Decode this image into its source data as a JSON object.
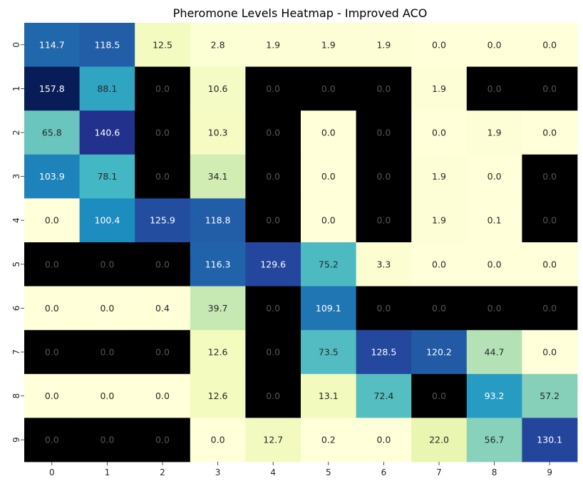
{
  "chart_data": {
    "type": "heatmap",
    "title": "Pheromone Levels Heatmap - Improved ACO",
    "x_labels": [
      "0",
      "1",
      "2",
      "3",
      "4",
      "5",
      "6",
      "7",
      "8",
      "9"
    ],
    "y_labels": [
      "0",
      "1",
      "2",
      "3",
      "4",
      "5",
      "6",
      "7",
      "8",
      "9"
    ],
    "values": [
      [
        114.7,
        118.5,
        12.5,
        2.8,
        1.9,
        1.9,
        1.9,
        0.0,
        0.0,
        0.0
      ],
      [
        157.8,
        88.1,
        0.0,
        10.6,
        0.0,
        0.0,
        0.0,
        1.9,
        0.0,
        0.0
      ],
      [
        65.8,
        140.6,
        0.0,
        10.3,
        0.0,
        0.0,
        0.0,
        0.0,
        1.9,
        0.0
      ],
      [
        103.9,
        78.1,
        0.0,
        34.1,
        0.0,
        0.0,
        0.0,
        1.9,
        0.0,
        0.0
      ],
      [
        0.0,
        100.4,
        125.9,
        118.8,
        0.0,
        0.0,
        0.0,
        1.9,
        0.1,
        0.0
      ],
      [
        0.0,
        0.0,
        0.0,
        116.3,
        129.6,
        75.2,
        3.3,
        0.0,
        0.0,
        0.0
      ],
      [
        0.0,
        0.0,
        0.4,
        39.7,
        0.0,
        109.1,
        0.0,
        0.0,
        0.0,
        0.0
      ],
      [
        0.0,
        0.0,
        0.0,
        12.6,
        0.0,
        73.5,
        128.5,
        120.2,
        44.7,
        0.0
      ],
      [
        0.0,
        0.0,
        0.0,
        12.6,
        0.0,
        13.1,
        72.4,
        0.0,
        93.2,
        57.2
      ],
      [
        0.0,
        0.0,
        0.0,
        0.0,
        12.7,
        0.2,
        0.0,
        22.0,
        56.7,
        130.1
      ]
    ],
    "obstacles": [
      [
        0,
        0,
        0,
        0,
        0,
        0,
        0,
        0,
        0,
        0
      ],
      [
        0,
        0,
        1,
        0,
        1,
        1,
        1,
        0,
        1,
        1
      ],
      [
        0,
        0,
        1,
        0,
        1,
        0,
        1,
        0,
        0,
        0
      ],
      [
        0,
        0,
        1,
        0,
        1,
        0,
        1,
        0,
        0,
        1
      ],
      [
        0,
        0,
        0,
        0,
        1,
        0,
        1,
        0,
        0,
        1
      ],
      [
        1,
        1,
        1,
        0,
        0,
        0,
        0,
        0,
        0,
        0
      ],
      [
        0,
        0,
        0,
        0,
        1,
        0,
        1,
        1,
        1,
        1
      ],
      [
        1,
        1,
        1,
        0,
        1,
        0,
        0,
        0,
        0,
        0
      ],
      [
        0,
        0,
        0,
        0,
        1,
        0,
        0,
        1,
        0,
        0
      ],
      [
        1,
        1,
        1,
        0,
        0,
        0,
        0,
        0,
        0,
        0
      ]
    ],
    "value_range": [
      0,
      157.8
    ],
    "colormap": "YlGnBu",
    "obstacle_color": "#000000",
    "colorbar": false,
    "grid": false
  }
}
